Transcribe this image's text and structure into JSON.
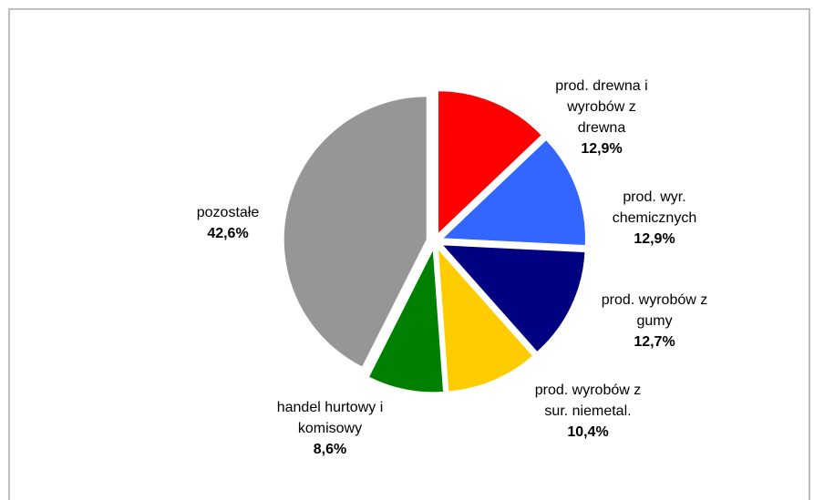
{
  "chart_data": {
    "type": "pie",
    "title": "",
    "slices": [
      {
        "label_lines": [
          "prod. drewna i",
          "wyrobów z",
          "drewna"
        ],
        "value": 12.9,
        "value_label": "12,9%",
        "color": "#ff0000"
      },
      {
        "label_lines": [
          "prod. wyr.",
          "chemicznych"
        ],
        "value": 12.9,
        "value_label": "12,9%",
        "color": "#3366ff"
      },
      {
        "label_lines": [
          "prod. wyrobów z",
          "gumy"
        ],
        "value": 12.7,
        "value_label": "12,7%",
        "color": "#000080"
      },
      {
        "label_lines": [
          "prod. wyrobów z",
          "sur. niemetal."
        ],
        "value": 10.4,
        "value_label": "10,4%",
        "color": "#ffcc00"
      },
      {
        "label_lines": [
          "handel hurtowy i",
          "komisowy"
        ],
        "value": 8.6,
        "value_label": "8,6%",
        "color": "#008000"
      },
      {
        "label_lines": [
          "pozostałe"
        ],
        "value": 42.6,
        "value_label": "42,6%",
        "color": "#969696"
      }
    ]
  }
}
